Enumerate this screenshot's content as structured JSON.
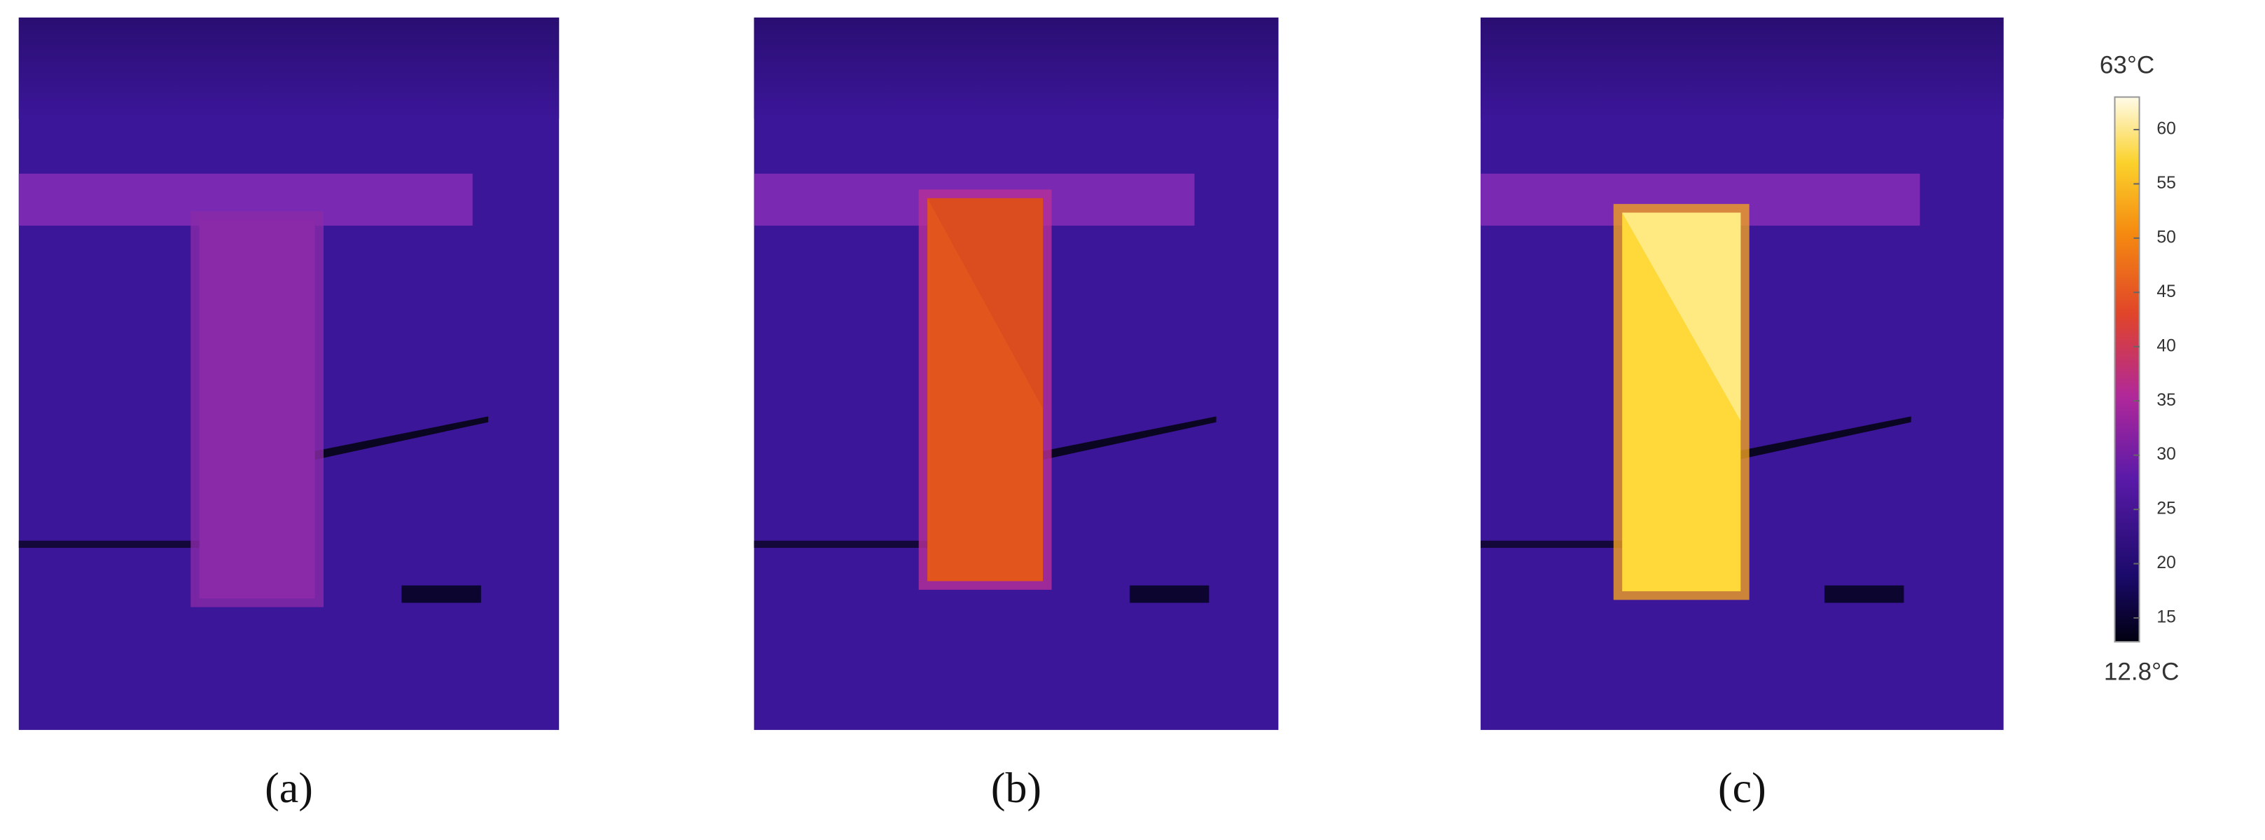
{
  "panels": [
    {
      "label": "(a)"
    },
    {
      "label": "(b)"
    },
    {
      "label": "(c)"
    }
  ],
  "colorbar": {
    "max_label": "63°C",
    "min_label": "12.8°C",
    "range": [
      12.8,
      63
    ],
    "ticks": [
      15,
      20,
      25,
      30,
      35,
      40,
      45,
      50,
      55,
      60
    ]
  }
}
